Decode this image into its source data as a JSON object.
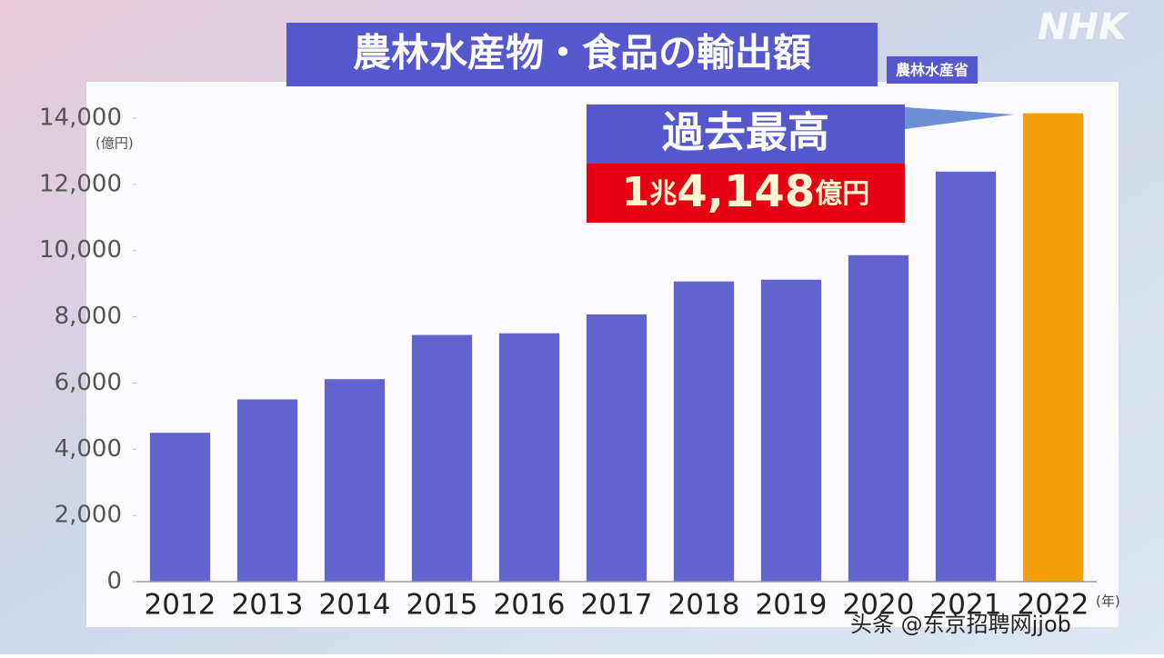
{
  "chart_data": {
    "type": "bar",
    "title": "農林水産物・食品の輸出額",
    "source": "農林水産省",
    "logo": "NHK",
    "y_unit": "(億円)",
    "x_unit": "(年)",
    "annotation": "過去最高",
    "annotation_value": [
      "1",
      "兆",
      "4,148",
      "億円"
    ],
    "watermark": "头条 @东京招聘网jjob",
    "categories": [
      "2012",
      "2013",
      "2014",
      "2015",
      "2016",
      "2017",
      "2018",
      "2019",
      "2020",
      "2021",
      "2022"
    ],
    "values": [
      4497,
      5505,
      6117,
      7451,
      7502,
      8071,
      9068,
      9121,
      9860,
      12385,
      14148
    ],
    "colors": [
      "#6363cf",
      "#6363cf",
      "#6363cf",
      "#6363cf",
      "#6363cf",
      "#6363cf",
      "#6363cf",
      "#6363cf",
      "#6363cf",
      "#6363cf",
      "#f59e0b"
    ],
    "ylim": [
      0,
      14000
    ],
    "yticks": [
      0,
      {
        "value": 2000,
        "label": "2,000"
      },
      {
        "value": 4000,
        "label": "4,000"
      },
      {
        "value": 6000,
        "label": "6,000"
      },
      {
        "value": 8000,
        "label": "8,000"
      },
      {
        "value": 10000,
        "label": "10,000"
      },
      {
        "value": 12000,
        "label": "12,000"
      },
      {
        "value": 14000,
        "label": "14,000"
      }
    ],
    "grid": false
  }
}
